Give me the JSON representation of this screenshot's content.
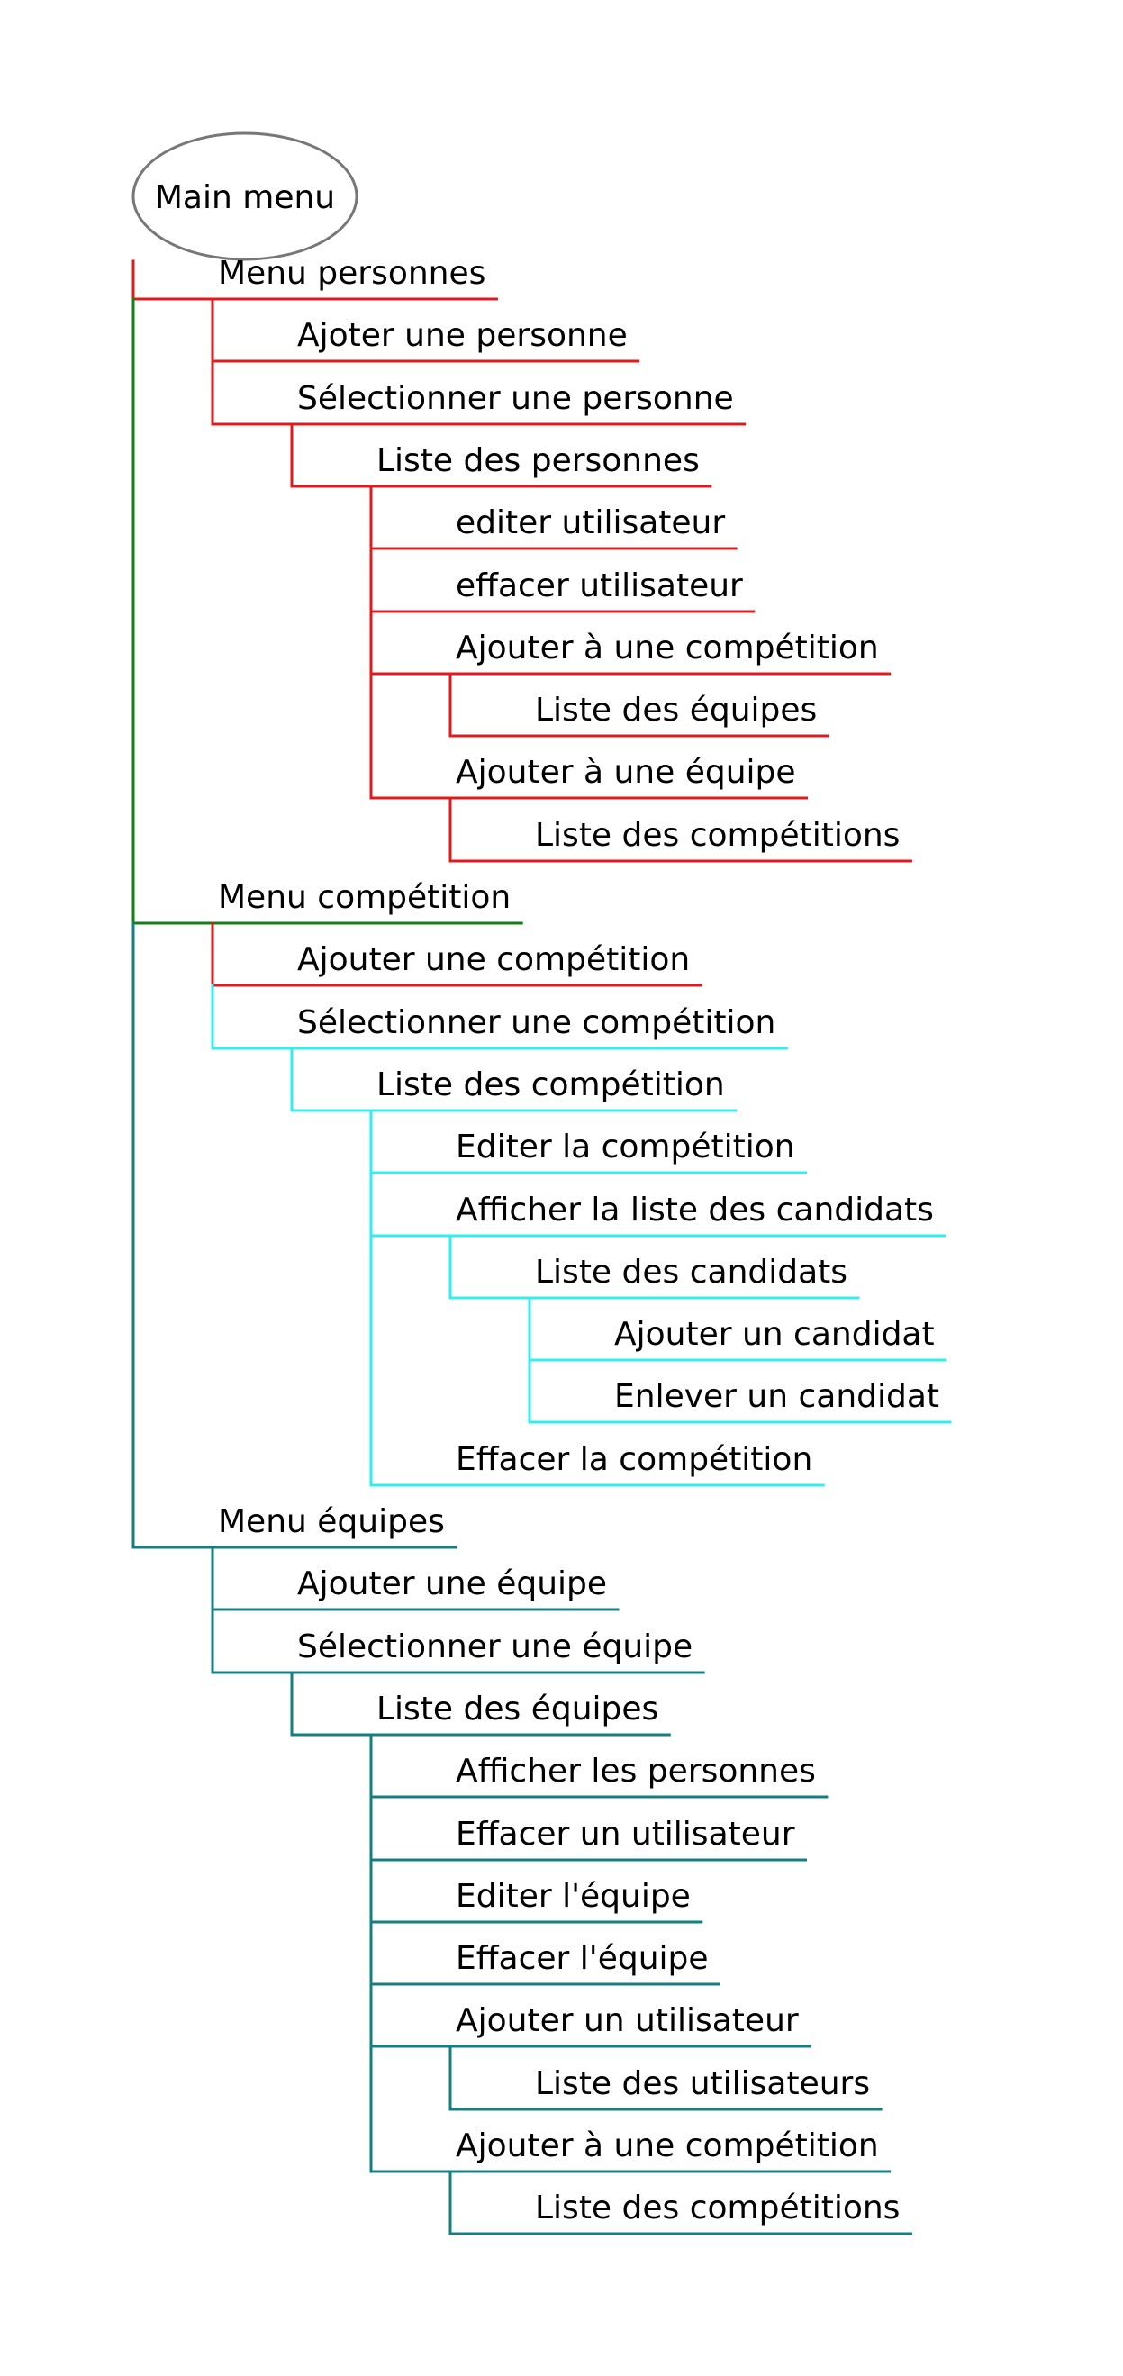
{
  "colors": {
    "red": "#dd1d1d",
    "green": "#128012",
    "cyan": "#33eeee",
    "teal": "#128080",
    "root_border": "#777777"
  },
  "root": {
    "label": "Main menu"
  },
  "nodes": [
    {
      "id": "menu-personnes",
      "label": "Menu personnes",
      "level": 1,
      "parent": "root",
      "color": "red"
    },
    {
      "id": "ajouter-personne",
      "label": "Ajoter une personne",
      "level": 2,
      "parent": "menu-personnes",
      "color": "red"
    },
    {
      "id": "selectionner-personne",
      "label": "Sélectionner une personne",
      "level": 2,
      "parent": "menu-personnes",
      "color": "red"
    },
    {
      "id": "liste-personnes",
      "label": "Liste des personnes",
      "level": 3,
      "parent": "selectionner-personne",
      "color": "red"
    },
    {
      "id": "editer-utilisateur",
      "label": "editer utilisateur",
      "level": 4,
      "parent": "liste-personnes",
      "color": "red"
    },
    {
      "id": "effacer-utilisateur",
      "label": "effacer utilisateur",
      "level": 4,
      "parent": "liste-personnes",
      "color": "red"
    },
    {
      "id": "ajouter-competition-p",
      "label": "Ajouter à une compétition",
      "level": 4,
      "parent": "liste-personnes",
      "color": "red"
    },
    {
      "id": "liste-equipes-p",
      "label": "Liste des équipes",
      "level": 5,
      "parent": "ajouter-competition-p",
      "color": "red"
    },
    {
      "id": "ajouter-equipe-p",
      "label": "Ajouter à une équipe",
      "level": 4,
      "parent": "liste-personnes",
      "color": "red"
    },
    {
      "id": "liste-competitions-p",
      "label": "Liste des compétitions",
      "level": 5,
      "parent": "ajouter-equipe-p",
      "color": "red"
    },
    {
      "id": "menu-competition",
      "label": "Menu compétition",
      "level": 1,
      "parent": "root",
      "color": "green"
    },
    {
      "id": "ajouter-competition",
      "label": "Ajouter une compétition",
      "level": 2,
      "parent": "menu-competition",
      "color": "red"
    },
    {
      "id": "selectionner-competition",
      "label": "Sélectionner une compétition",
      "level": 2,
      "parent": "menu-competition",
      "color": "cyan"
    },
    {
      "id": "liste-competition",
      "label": "Liste des compétition",
      "level": 3,
      "parent": "selectionner-competition",
      "color": "cyan"
    },
    {
      "id": "editer-competition",
      "label": "Editer la compétition",
      "level": 4,
      "parent": "liste-competition",
      "color": "cyan"
    },
    {
      "id": "afficher-candidats",
      "label": "Afficher la liste des candidats",
      "level": 4,
      "parent": "liste-competition",
      "color": "cyan"
    },
    {
      "id": "liste-candidats",
      "label": "Liste des candidats",
      "level": 5,
      "parent": "afficher-candidats",
      "color": "cyan"
    },
    {
      "id": "ajouter-candidat",
      "label": "Ajouter un candidat",
      "level": 6,
      "parent": "liste-candidats",
      "color": "cyan"
    },
    {
      "id": "enlever-candidat",
      "label": "Enlever un candidat",
      "level": 6,
      "parent": "liste-candidats",
      "color": "cyan"
    },
    {
      "id": "effacer-competition",
      "label": "Effacer la compétition",
      "level": 4,
      "parent": "liste-competition",
      "color": "cyan"
    },
    {
      "id": "menu-equipes",
      "label": "Menu équipes",
      "level": 1,
      "parent": "root",
      "color": "teal"
    },
    {
      "id": "ajouter-equipe",
      "label": "Ajouter une équipe",
      "level": 2,
      "parent": "menu-equipes",
      "color": "teal"
    },
    {
      "id": "selectionner-equipe",
      "label": "Sélectionner une équipe",
      "level": 2,
      "parent": "menu-equipes",
      "color": "teal"
    },
    {
      "id": "liste-equipes",
      "label": "Liste des équipes",
      "level": 3,
      "parent": "selectionner-equipe",
      "color": "teal"
    },
    {
      "id": "afficher-personnes",
      "label": "Afficher les personnes",
      "level": 4,
      "parent": "liste-equipes",
      "color": "teal"
    },
    {
      "id": "effacer-un-utilisateur",
      "label": "Effacer un utilisateur",
      "level": 4,
      "parent": "liste-equipes",
      "color": "teal"
    },
    {
      "id": "editer-equipe",
      "label": "Editer l'équipe",
      "level": 4,
      "parent": "liste-equipes",
      "color": "teal"
    },
    {
      "id": "effacer-equipe",
      "label": "Effacer l'équipe",
      "level": 4,
      "parent": "liste-equipes",
      "color": "teal"
    },
    {
      "id": "ajouter-un-utilisateur",
      "label": "Ajouter un utilisateur",
      "level": 4,
      "parent": "liste-equipes",
      "color": "teal"
    },
    {
      "id": "liste-utilisateurs",
      "label": "Liste des utilisateurs",
      "level": 5,
      "parent": "ajouter-un-utilisateur",
      "color": "teal"
    },
    {
      "id": "ajouter-competition-e",
      "label": "Ajouter à une compétition",
      "level": 4,
      "parent": "liste-equipes",
      "color": "teal"
    },
    {
      "id": "liste-competitions-e",
      "label": "Liste des compétitions",
      "level": 5,
      "parent": "ajouter-competition-e",
      "color": "teal"
    }
  ]
}
